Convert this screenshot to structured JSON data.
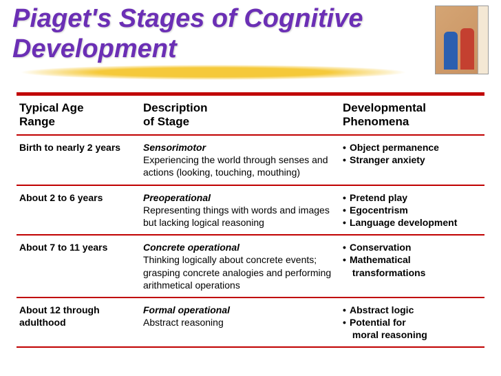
{
  "title": "Piaget's Stages of Cognitive Development",
  "colors": {
    "title": "#6b2fb5",
    "rule": "#c00000",
    "brush": "#f5c93a",
    "background": "#ffffff"
  },
  "headers": {
    "age": "Typical Age Range",
    "desc": "Description of Stage",
    "phen": "Developmental Phenomena"
  },
  "rows": [
    {
      "age": "Birth to nearly 2 years",
      "stage": "Sensorimotor",
      "desc": "Experiencing the world through senses and actions (looking, touching, mouthing)",
      "phenomena": [
        "Object permanence",
        "Stranger anxiety"
      ]
    },
    {
      "age": "About 2 to 6 years",
      "stage": "Preoperational",
      "desc": "Representing things with words and images but lacking logical reasoning",
      "phenomena": [
        "Pretend play",
        "Egocentrism",
        "Language development"
      ]
    },
    {
      "age": "About 7 to 11 years",
      "stage": "Concrete operational",
      "desc": "Thinking logically about concrete events; grasping concrete analogies and performing arithmetical operations",
      "phenomena": [
        "Conservation",
        "Mathematical transformations"
      ]
    },
    {
      "age": "About 12 through adulthood",
      "stage": "Formal operational",
      "desc": "Abstract reasoning",
      "phenomena": [
        "Abstract logic",
        "Potential for moral reasoning"
      ]
    }
  ]
}
